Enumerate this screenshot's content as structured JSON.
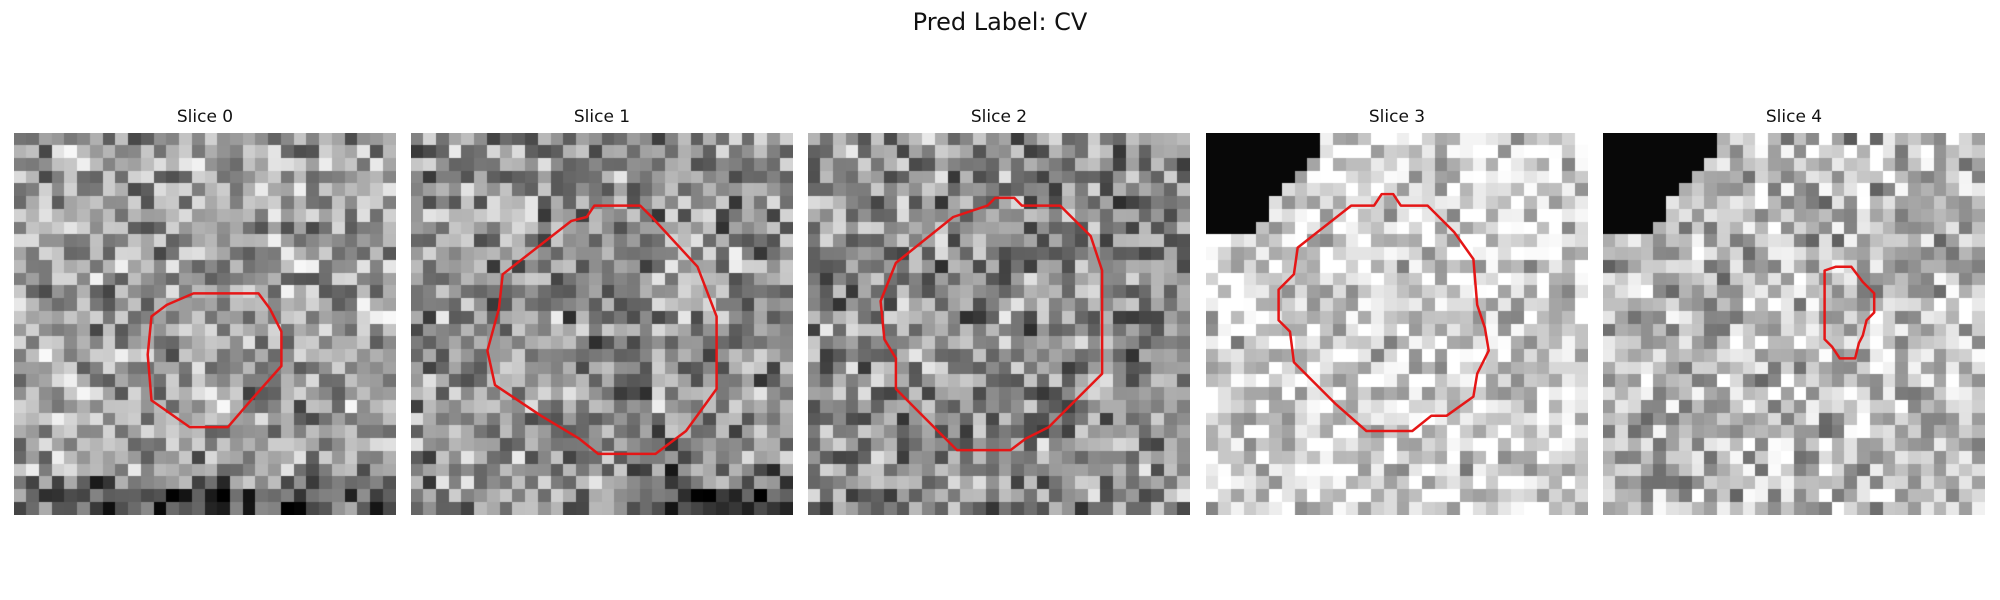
{
  "figure": {
    "title": "Pred Label: CV"
  },
  "panels": [
    {
      "title": "Slice 0",
      "image": {
        "kind": "grayscale-noise",
        "base_brightness": 0.62,
        "dark_band": "bottom"
      },
      "mask": {
        "points": [
          [
            0.47,
            0.42
          ],
          [
            0.64,
            0.42
          ],
          [
            0.67,
            0.46
          ],
          [
            0.7,
            0.52
          ],
          [
            0.7,
            0.61
          ],
          [
            0.62,
            0.7
          ],
          [
            0.56,
            0.77
          ],
          [
            0.46,
            0.77
          ],
          [
            0.36,
            0.7
          ],
          [
            0.35,
            0.58
          ],
          [
            0.36,
            0.48
          ],
          [
            0.4,
            0.45
          ]
        ],
        "color": "#e51616"
      }
    },
    {
      "title": "Slice 1",
      "image": {
        "kind": "grayscale-noise",
        "base_brightness": 0.56,
        "dark_band": "bottom-right"
      },
      "mask": {
        "points": [
          [
            0.42,
            0.23
          ],
          [
            0.46,
            0.22
          ],
          [
            0.48,
            0.19
          ],
          [
            0.6,
            0.19
          ],
          [
            0.63,
            0.22
          ],
          [
            0.75,
            0.35
          ],
          [
            0.8,
            0.48
          ],
          [
            0.8,
            0.67
          ],
          [
            0.72,
            0.78
          ],
          [
            0.64,
            0.84
          ],
          [
            0.59,
            0.84
          ],
          [
            0.54,
            0.84
          ],
          [
            0.49,
            0.84
          ],
          [
            0.44,
            0.8
          ],
          [
            0.34,
            0.74
          ],
          [
            0.22,
            0.66
          ],
          [
            0.2,
            0.57
          ],
          [
            0.23,
            0.46
          ],
          [
            0.24,
            0.37
          ]
        ],
        "color": "#e51616"
      }
    },
    {
      "title": "Slice 2",
      "image": {
        "kind": "grayscale-noise",
        "base_brightness": 0.55,
        "dark_band": "none"
      },
      "mask": {
        "points": [
          [
            0.38,
            0.22
          ],
          [
            0.47,
            0.19
          ],
          [
            0.49,
            0.17
          ],
          [
            0.54,
            0.17
          ],
          [
            0.56,
            0.19
          ],
          [
            0.66,
            0.19
          ],
          [
            0.74,
            0.27
          ],
          [
            0.77,
            0.36
          ],
          [
            0.77,
            0.63
          ],
          [
            0.7,
            0.7
          ],
          [
            0.63,
            0.77
          ],
          [
            0.57,
            0.8
          ],
          [
            0.53,
            0.83
          ],
          [
            0.39,
            0.83
          ],
          [
            0.3,
            0.74
          ],
          [
            0.23,
            0.67
          ],
          [
            0.23,
            0.59
          ],
          [
            0.2,
            0.54
          ],
          [
            0.19,
            0.44
          ],
          [
            0.23,
            0.34
          ]
        ],
        "color": "#e51616"
      }
    },
    {
      "title": "Slice 3",
      "image": {
        "kind": "grayscale-noise",
        "base_brightness": 0.84,
        "dark_band": "top-left"
      },
      "mask": {
        "points": [
          [
            0.38,
            0.19
          ],
          [
            0.44,
            0.19
          ],
          [
            0.46,
            0.16
          ],
          [
            0.49,
            0.16
          ],
          [
            0.51,
            0.19
          ],
          [
            0.58,
            0.19
          ],
          [
            0.65,
            0.26
          ],
          [
            0.7,
            0.33
          ],
          [
            0.71,
            0.45
          ],
          [
            0.73,
            0.51
          ],
          [
            0.74,
            0.57
          ],
          [
            0.71,
            0.63
          ],
          [
            0.7,
            0.69
          ],
          [
            0.63,
            0.74
          ],
          [
            0.59,
            0.74
          ],
          [
            0.54,
            0.78
          ],
          [
            0.42,
            0.78
          ],
          [
            0.34,
            0.71
          ],
          [
            0.23,
            0.6
          ],
          [
            0.22,
            0.52
          ],
          [
            0.19,
            0.49
          ],
          [
            0.19,
            0.41
          ],
          [
            0.23,
            0.37
          ],
          [
            0.24,
            0.3
          ]
        ],
        "color": "#e51616"
      }
    },
    {
      "title": "Slice 4",
      "image": {
        "kind": "grayscale-noise",
        "base_brightness": 0.73,
        "dark_band": "top-left"
      },
      "mask": {
        "points": [
          [
            0.58,
            0.36
          ],
          [
            0.61,
            0.35
          ],
          [
            0.65,
            0.35
          ],
          [
            0.68,
            0.39
          ],
          [
            0.71,
            0.42
          ],
          [
            0.71,
            0.47
          ],
          [
            0.69,
            0.49
          ],
          [
            0.68,
            0.53
          ],
          [
            0.67,
            0.55
          ],
          [
            0.66,
            0.59
          ],
          [
            0.62,
            0.59
          ],
          [
            0.6,
            0.56
          ],
          [
            0.58,
            0.54
          ],
          [
            0.58,
            0.45
          ]
        ],
        "color": "#e51616"
      }
    }
  ]
}
